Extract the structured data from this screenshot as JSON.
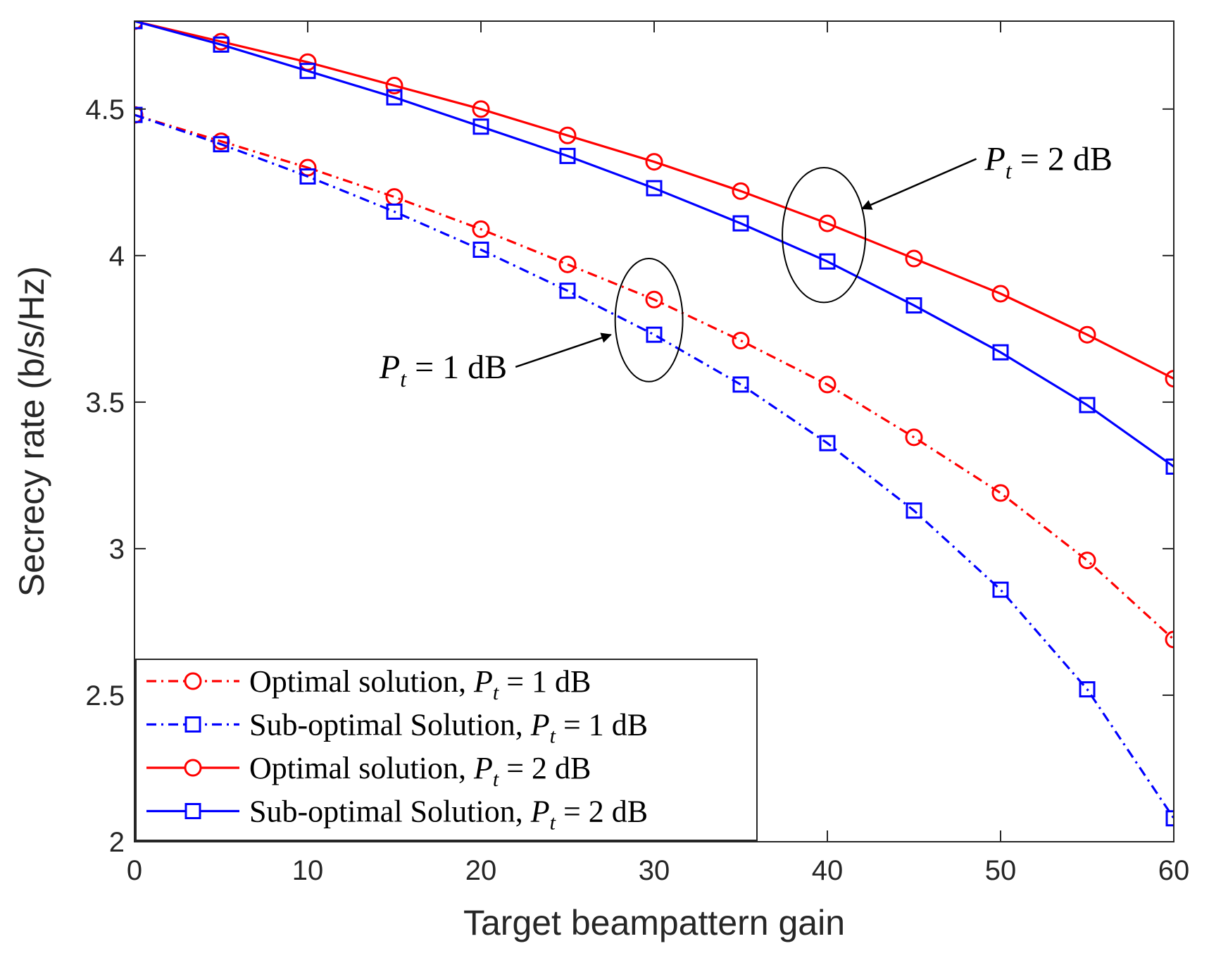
{
  "chart_data": {
    "type": "line",
    "title": "",
    "xlabel": "Target beampattern gain",
    "ylabel": "Secrecy rate (b/s/Hz)",
    "xlim": [
      0,
      60
    ],
    "ylim": [
      2,
      4.8
    ],
    "xticks": [
      0,
      10,
      20,
      30,
      40,
      50,
      60
    ],
    "xtick_labels": [
      "0",
      "10",
      "20",
      "30",
      "40",
      "50",
      "60"
    ],
    "yticks": [
      2,
      2.5,
      3,
      3.5,
      4,
      4.5
    ],
    "ytick_labels": [
      "2",
      "2.5",
      "3",
      "3.5",
      "4",
      "4.5"
    ],
    "grid": false,
    "legend_position": "bottom-left",
    "x": [
      0,
      5,
      10,
      15,
      20,
      25,
      30,
      35,
      40,
      45,
      50,
      55,
      60
    ],
    "series": [
      {
        "name": "Optimal solution, Pt = 1 dB",
        "legend_prefix": "Optimal solution, ",
        "legend_power": "1",
        "color": "#ff0000",
        "line_style": "dashdot",
        "marker": "circle",
        "values": [
          4.48,
          4.39,
          4.3,
          4.2,
          4.09,
          3.97,
          3.85,
          3.71,
          3.56,
          3.38,
          3.19,
          2.96,
          2.69
        ]
      },
      {
        "name": "Sub-optimal Solution, Pt = 1 dB",
        "legend_prefix": "Sub-optimal Solution, ",
        "legend_power": "1",
        "color": "#0000ff",
        "line_style": "dashdot",
        "marker": "square",
        "values": [
          4.48,
          4.38,
          4.27,
          4.15,
          4.02,
          3.88,
          3.73,
          3.56,
          3.36,
          3.13,
          2.86,
          2.52,
          2.08
        ]
      },
      {
        "name": "Optimal solution, Pt = 2 dB",
        "legend_prefix": "Optimal solution, ",
        "legend_power": "2",
        "color": "#ff0000",
        "line_style": "solid",
        "marker": "circle",
        "values": [
          4.8,
          4.73,
          4.66,
          4.58,
          4.5,
          4.41,
          4.32,
          4.22,
          4.11,
          3.99,
          3.87,
          3.73,
          3.58
        ]
      },
      {
        "name": "Sub-optimal Solution, Pt = 2 dB",
        "legend_prefix": "Sub-optimal Solution, ",
        "legend_power": "2",
        "color": "#0000ff",
        "line_style": "solid",
        "marker": "square",
        "values": [
          4.8,
          4.72,
          4.63,
          4.54,
          4.44,
          4.34,
          4.23,
          4.11,
          3.98,
          3.83,
          3.67,
          3.49,
          3.28
        ]
      }
    ],
    "annotations": [
      {
        "text_prefix": "P",
        "text_sub": "t",
        "text_suffix": " = 2 dB",
        "ellipse_center": [
          39.8,
          4.07
        ],
        "ellipse_radius": [
          2.4,
          0.23
        ],
        "arrow_from": [
          48.6,
          4.33
        ],
        "arrow_to": [
          42.0,
          4.16
        ]
      },
      {
        "text_prefix": "P",
        "text_sub": "t",
        "text_suffix": " = 1 dB",
        "ellipse_center": [
          29.7,
          3.78
        ],
        "ellipse_radius": [
          1.95,
          0.21
        ],
        "arrow_from": [
          22.0,
          3.62
        ],
        "arrow_to": [
          27.5,
          3.73
        ]
      }
    ]
  }
}
